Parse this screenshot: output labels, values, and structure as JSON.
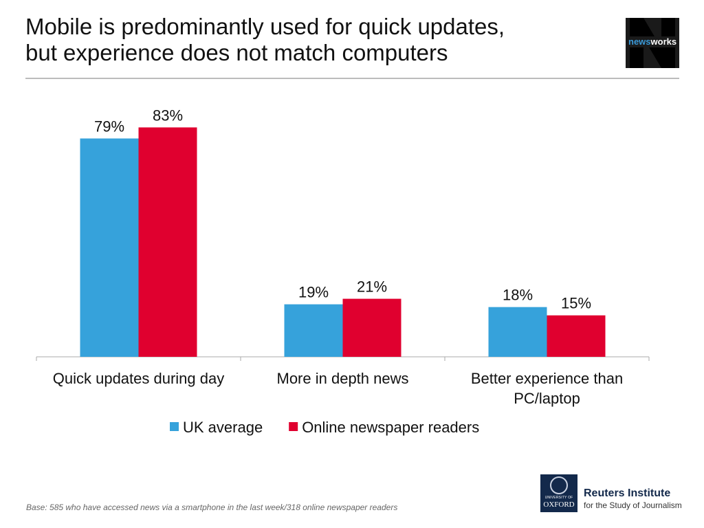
{
  "title_line1": "Mobile is predominantly used for quick updates,",
  "title_line2": "but experience does not match computers",
  "logo_newsworks": {
    "prefix": "news",
    "suffix": "works"
  },
  "footnote": "Base: 585 who have accessed news via a smartphone in the last week/318 online newspaper readers",
  "oxford_logo": {
    "university": "UNIVERSITY OF",
    "name": "OXFORD"
  },
  "reuters": {
    "name": "Reuters Institute",
    "sub": "for the Study of Journalism"
  },
  "chart_data": {
    "type": "bar",
    "categories": [
      [
        "Quick updates during day"
      ],
      [
        "More in depth news"
      ],
      [
        "Better experience than",
        "PC/laptop"
      ]
    ],
    "series": [
      {
        "name": "UK average",
        "color": "#36a2db",
        "values": [
          79,
          19,
          18
        ],
        "labels": [
          "79%",
          "19%",
          "18%"
        ]
      },
      {
        "name": "Online newspaper readers",
        "color": "#e0002f",
        "values": [
          83,
          21,
          15
        ],
        "labels": [
          "83%",
          "21%",
          "15%"
        ]
      }
    ],
    "ylim": [
      0,
      100
    ],
    "grid": false,
    "legend": "bottom"
  }
}
